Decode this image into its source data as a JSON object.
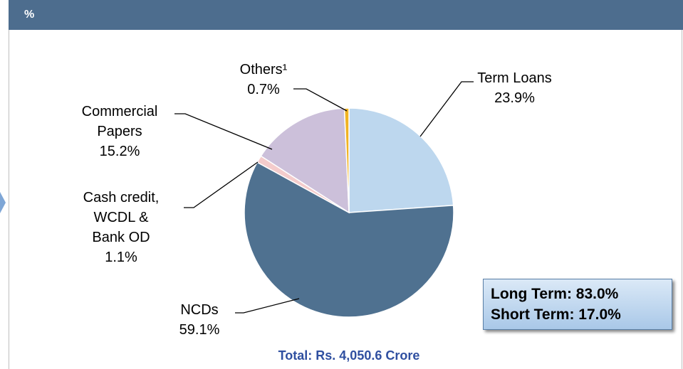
{
  "chart_data": {
    "type": "pie",
    "subtitle": "%",
    "categories": [
      "Term Loans",
      "NCDs",
      "Cash credit, WCDL & Bank OD",
      "Commercial Papers",
      "Others¹"
    ],
    "values": [
      23.9,
      59.1,
      1.1,
      15.2,
      0.7
    ],
    "value_labels": [
      "23.9%",
      "59.1%",
      "1.1%",
      "15.2%",
      "0.7%"
    ],
    "colors": [
      "#bdd7ee",
      "#4f7190",
      "#f4cccc",
      "#ccc0da",
      "#f0b323"
    ],
    "annotations": [
      "Long Term: 83.0%",
      "Short Term: 17.0%"
    ],
    "total": "Total: Rs. 4,050.6 Crore"
  }
}
